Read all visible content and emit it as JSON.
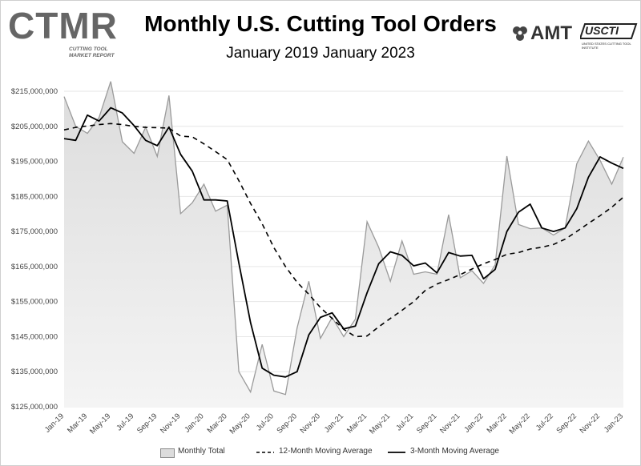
{
  "header": {
    "title": "Monthly U.S. Cutting Tool Orders",
    "subtitle": "January 2019 January 2023",
    "logo_ctmr": "CTMR",
    "logo_ctmr_sub": "CUTTING TOOL MARKET REPORT",
    "logo_amt": "AMT",
    "logo_usctm": "USCTI",
    "logo_usctm_sub": "UNITED STATES CUTTING TOOL INSTITUTE"
  },
  "legend": {
    "items": [
      {
        "label": "Monthly Total",
        "style": "area"
      },
      {
        "label": "12-Month Moving Average",
        "style": "dashed"
      },
      {
        "label": "3-Month Moving Average",
        "style": "solid"
      }
    ]
  },
  "colors": {
    "area_fill_top": "#dcdcdc",
    "area_fill_bottom": "#f4f4f4",
    "area_stroke": "#9a9a9a",
    "line": "#000000",
    "grid": "#e6e6e6"
  },
  "chart_data": {
    "type": "area",
    "title": "Monthly U.S. Cutting Tool Orders",
    "subtitle": "January 2019 January 2023",
    "xlabel": "",
    "ylabel": "",
    "ylim": [
      125000000,
      215000000
    ],
    "y_ticks": [
      125000000,
      135000000,
      145000000,
      155000000,
      165000000,
      175000000,
      185000000,
      195000000,
      205000000,
      215000000
    ],
    "y_tick_labels": [
      "$125,000,000",
      "$135,000,000",
      "$145,000,000",
      "$155,000,000",
      "$165,000,000",
      "$175,000,000",
      "$185,000,000",
      "$195,000,000",
      "$205,000,000",
      "$215,000,000"
    ],
    "x": [
      "Jan-19",
      "Feb-19",
      "Mar-19",
      "Apr-19",
      "May-19",
      "Jun-19",
      "Jul-19",
      "Aug-19",
      "Sep-19",
      "Oct-19",
      "Nov-19",
      "Dec-19",
      "Jan-20",
      "Feb-20",
      "Mar-20",
      "Apr-20",
      "May-20",
      "Jun-20",
      "Jul-20",
      "Aug-20",
      "Sep-20",
      "Oct-20",
      "Nov-20",
      "Dec-20",
      "Jan-21",
      "Feb-21",
      "Mar-21",
      "Apr-21",
      "May-21",
      "Jun-21",
      "Jul-21",
      "Aug-21",
      "Sep-21",
      "Oct-21",
      "Nov-21",
      "Dec-21",
      "Jan-22",
      "Feb-22",
      "Mar-22",
      "Apr-22",
      "May-22",
      "Jun-22",
      "Jul-22",
      "Aug-22",
      "Sep-22",
      "Oct-22",
      "Nov-22",
      "Dec-22",
      "Jan-23"
    ],
    "x_tick_labels": [
      "Jan-19",
      "Mar-19",
      "May-19",
      "Jul-19",
      "Sep-19",
      "Nov-19",
      "Jan-20",
      "Mar-20",
      "May-20",
      "Jul-20",
      "Sep-20",
      "Nov-20",
      "Jan-21",
      "Mar-21",
      "May-21",
      "Jul-21",
      "Sep-21",
      "Nov-21",
      "Jan-22",
      "Mar-22",
      "May-22",
      "Jul-22",
      "Sep-22",
      "Nov-22",
      "Jan-23"
    ],
    "grid": "horizontal",
    "legend_position": "bottom",
    "series": [
      {
        "name": "Monthly Total",
        "style": "area",
        "values": [
          213500000,
          205000000,
          203000000,
          207500000,
          217800000,
          200600000,
          197300000,
          204800000,
          196400000,
          213800000,
          180100000,
          183200000,
          188500000,
          180800000,
          182500000,
          135000000,
          129200000,
          142800000,
          129500000,
          128500000,
          147500000,
          160800000,
          144500000,
          150500000,
          145000000,
          150000000,
          177800000,
          170500000,
          160800000,
          172300000,
          162800000,
          163500000,
          162800000,
          179800000,
          161800000,
          163800000,
          160200000,
          165500000,
          196500000,
          177000000,
          175800000,
          176000000,
          174000000,
          176000000,
          194300000,
          200800000,
          195300000,
          188500000,
          196200000
        ]
      },
      {
        "name": "12-Month Moving Average",
        "style": "dashed",
        "values": [
          204000000,
          204700000,
          205100000,
          205500000,
          205800000,
          205500000,
          205000000,
          204700000,
          204600000,
          204500000,
          202200000,
          202000000,
          200000000,
          197800000,
          195500000,
          189500000,
          183000000,
          177200000,
          170400000,
          165000000,
          160500000,
          157100000,
          153300000,
          150200000,
          147100000,
          145000000,
          145200000,
          147800000,
          150200000,
          152500000,
          155000000,
          158200000,
          160000000,
          161300000,
          162700000,
          164300000,
          165800000,
          167000000,
          168500000,
          169000000,
          170000000,
          170500000,
          171300000,
          172800000,
          175000000,
          177300000,
          179500000,
          181900000,
          184800000
        ]
      },
      {
        "name": "3-Month Moving Average",
        "style": "solid",
        "values": [
          201500000,
          201000000,
          208200000,
          206500000,
          210300000,
          208800000,
          205200000,
          201000000,
          199500000,
          204800000,
          197000000,
          192200000,
          184000000,
          184000000,
          183700000,
          166000000,
          149000000,
          136000000,
          134000000,
          133500000,
          135000000,
          145500000,
          150500000,
          151800000,
          147200000,
          148000000,
          157500000,
          165800000,
          169200000,
          168200000,
          165200000,
          166000000,
          163200000,
          169000000,
          168000000,
          168200000,
          161500000,
          164200000,
          175000000,
          180500000,
          182800000,
          176000000,
          175000000,
          176000000,
          181500000,
          190500000,
          196300000,
          194500000,
          193000000
        ]
      }
    ]
  }
}
